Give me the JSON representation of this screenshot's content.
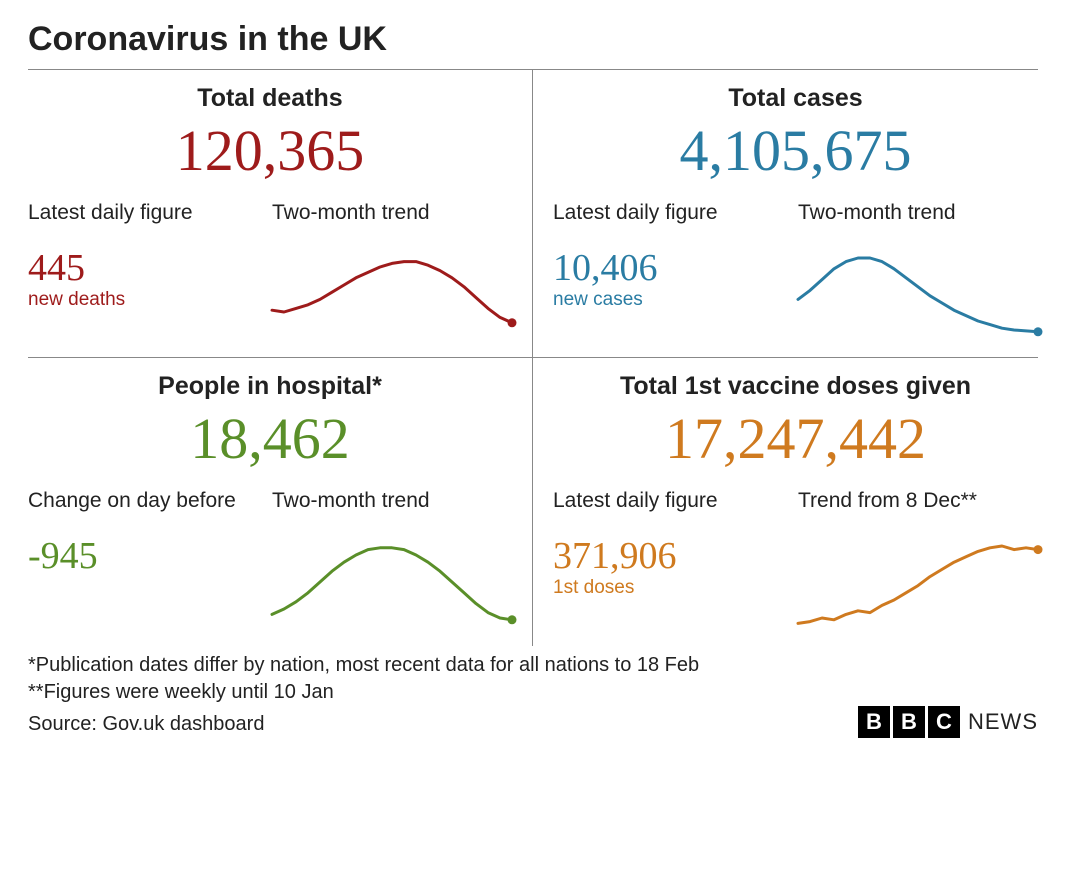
{
  "title": "Coronavirus in the UK",
  "colors": {
    "text": "#222222",
    "border": "#888888",
    "background": "#ffffff"
  },
  "panels": [
    {
      "key": "deaths",
      "title": "Total deaths",
      "big_number": "120,365",
      "color": "#9e1b1b",
      "left_label": "Latest daily figure",
      "left_number": "445",
      "left_caption": "new deaths",
      "right_label": "Two-month trend",
      "spark": {
        "type": "line",
        "stroke_width": 3,
        "end_dot_radius": 4.5,
        "points": [
          [
            0,
            0.68
          ],
          [
            0.05,
            0.7
          ],
          [
            0.1,
            0.66
          ],
          [
            0.15,
            0.62
          ],
          [
            0.2,
            0.56
          ],
          [
            0.25,
            0.48
          ],
          [
            0.3,
            0.4
          ],
          [
            0.35,
            0.32
          ],
          [
            0.4,
            0.26
          ],
          [
            0.45,
            0.2
          ],
          [
            0.5,
            0.16
          ],
          [
            0.55,
            0.14
          ],
          [
            0.6,
            0.14
          ],
          [
            0.65,
            0.18
          ],
          [
            0.7,
            0.24
          ],
          [
            0.75,
            0.32
          ],
          [
            0.8,
            0.42
          ],
          [
            0.85,
            0.54
          ],
          [
            0.9,
            0.66
          ],
          [
            0.95,
            0.76
          ],
          [
            1.0,
            0.82
          ]
        ]
      }
    },
    {
      "key": "cases",
      "title": "Total cases",
      "big_number": "4,105,675",
      "color": "#2a7ca3",
      "left_label": "Latest daily figure",
      "left_number": "10,406",
      "left_caption": "new cases",
      "right_label": "Two-month trend",
      "spark": {
        "type": "line",
        "stroke_width": 3,
        "end_dot_radius": 4.5,
        "points": [
          [
            0,
            0.56
          ],
          [
            0.05,
            0.46
          ],
          [
            0.1,
            0.34
          ],
          [
            0.15,
            0.22
          ],
          [
            0.2,
            0.14
          ],
          [
            0.25,
            0.1
          ],
          [
            0.3,
            0.1
          ],
          [
            0.35,
            0.14
          ],
          [
            0.4,
            0.22
          ],
          [
            0.45,
            0.32
          ],
          [
            0.5,
            0.42
          ],
          [
            0.55,
            0.52
          ],
          [
            0.6,
            0.6
          ],
          [
            0.65,
            0.68
          ],
          [
            0.7,
            0.74
          ],
          [
            0.75,
            0.8
          ],
          [
            0.8,
            0.84
          ],
          [
            0.85,
            0.88
          ],
          [
            0.9,
            0.9
          ],
          [
            0.95,
            0.91
          ],
          [
            1.0,
            0.92
          ]
        ]
      }
    },
    {
      "key": "hospital",
      "title": "People in hospital*",
      "big_number": "18,462",
      "color": "#5a8f29",
      "left_label": "Change on day before",
      "left_number": "-945",
      "left_caption": "",
      "right_label": "Two-month trend",
      "spark": {
        "type": "line",
        "stroke_width": 3,
        "end_dot_radius": 4.5,
        "points": [
          [
            0,
            0.86
          ],
          [
            0.05,
            0.8
          ],
          [
            0.1,
            0.72
          ],
          [
            0.15,
            0.62
          ],
          [
            0.2,
            0.5
          ],
          [
            0.25,
            0.38
          ],
          [
            0.3,
            0.28
          ],
          [
            0.35,
            0.2
          ],
          [
            0.4,
            0.14
          ],
          [
            0.45,
            0.12
          ],
          [
            0.5,
            0.12
          ],
          [
            0.55,
            0.14
          ],
          [
            0.6,
            0.2
          ],
          [
            0.65,
            0.28
          ],
          [
            0.7,
            0.38
          ],
          [
            0.75,
            0.5
          ],
          [
            0.8,
            0.62
          ],
          [
            0.85,
            0.74
          ],
          [
            0.9,
            0.84
          ],
          [
            0.95,
            0.9
          ],
          [
            1.0,
            0.92
          ]
        ]
      }
    },
    {
      "key": "vaccines",
      "title": "Total 1st vaccine doses given",
      "big_number": "17,247,442",
      "color": "#cf7a1f",
      "left_label": "Latest daily figure",
      "left_number": "371,906",
      "left_caption": "1st doses",
      "right_label": "Trend from 8 Dec**",
      "spark": {
        "type": "line",
        "stroke_width": 3,
        "end_dot_radius": 4.5,
        "points": [
          [
            0,
            0.96
          ],
          [
            0.05,
            0.94
          ],
          [
            0.1,
            0.9
          ],
          [
            0.15,
            0.92
          ],
          [
            0.2,
            0.86
          ],
          [
            0.25,
            0.82
          ],
          [
            0.3,
            0.84
          ],
          [
            0.35,
            0.76
          ],
          [
            0.4,
            0.7
          ],
          [
            0.45,
            0.62
          ],
          [
            0.5,
            0.54
          ],
          [
            0.55,
            0.44
          ],
          [
            0.6,
            0.36
          ],
          [
            0.65,
            0.28
          ],
          [
            0.7,
            0.22
          ],
          [
            0.75,
            0.16
          ],
          [
            0.8,
            0.12
          ],
          [
            0.85,
            0.1
          ],
          [
            0.9,
            0.14
          ],
          [
            0.95,
            0.12
          ],
          [
            1.0,
            0.14
          ]
        ]
      }
    }
  ],
  "footnotes": [
    "*Publication dates differ by nation, most recent data for all nations to 18 Feb",
    "**Figures were weekly until 10 Jan"
  ],
  "source": "Source: Gov.uk dashboard",
  "logo": {
    "letters": [
      "B",
      "B",
      "C"
    ],
    "word": "NEWS"
  }
}
